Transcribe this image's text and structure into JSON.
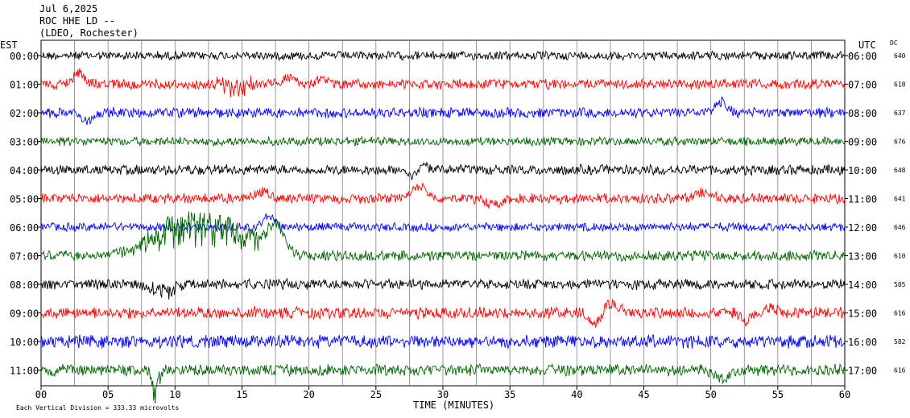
{
  "header": {
    "date": "Jul 6,2025",
    "station": "ROC HHE LD --",
    "location": "(LDEO, Rochester)"
  },
  "chart_data": {
    "type": "line",
    "title": "Jul 6,2025",
    "subtitle": "ROC HHE LD --",
    "xlabel": "TIME (MINUTES)",
    "ylabel_left": "EST",
    "ylabel_right": "UTC",
    "dc_label": "DC",
    "footnote": "Each Vertical Division =  333.33 microvolts",
    "xlim": [
      0,
      60
    ],
    "xticks": [
      0,
      5,
      10,
      15,
      20,
      25,
      30,
      35,
      40,
      45,
      50,
      55,
      60
    ],
    "xtick_labels": [
      "00",
      "05",
      "10",
      "15",
      "20",
      "25",
      "30",
      "35",
      "40",
      "45",
      "50",
      "55",
      "60"
    ],
    "grid": "vertical lines every 2.5 minutes",
    "colors": [
      "#000000",
      "#ff0000",
      "#0000ff",
      "#006400"
    ],
    "rows": [
      {
        "est": "00:00",
        "utc": "06:00",
        "dc": "640",
        "color": "#000000",
        "amp": 6,
        "events": []
      },
      {
        "est": "01:00",
        "utc": "07:00",
        "dc": "618",
        "color": "#ff0000",
        "amp": 7,
        "events": [
          [
            2.8,
            -14,
            0.6
          ],
          [
            14.5,
            0,
            1.5,
            12
          ],
          [
            18.5,
            -8,
            0.7
          ],
          [
            21,
            -6,
            0.6
          ]
        ]
      },
      {
        "est": "02:00",
        "utc": "08:00",
        "dc": "637",
        "color": "#0000ff",
        "amp": 7,
        "events": [
          [
            3.4,
            10,
            0.6
          ],
          [
            50.8,
            -14,
            0.6
          ]
        ]
      },
      {
        "est": "03:00",
        "utc": "09:00",
        "dc": "676",
        "color": "#006400",
        "amp": 6,
        "events": []
      },
      {
        "est": "04:00",
        "utc": "10:00",
        "dc": "648",
        "color": "#000000",
        "amp": 7,
        "events": [
          [
            27.8,
            10,
            0.5
          ],
          [
            28.4,
            -8,
            0.6
          ]
        ]
      },
      {
        "est": "05:00",
        "utc": "11:00",
        "dc": "641",
        "color": "#ff0000",
        "amp": 7,
        "events": [
          [
            16.5,
            -8,
            0.8
          ],
          [
            28.2,
            -14,
            0.8
          ],
          [
            33.8,
            8,
            0.9
          ],
          [
            49.5,
            -8,
            0.7
          ]
        ]
      },
      {
        "est": "06:00",
        "utc": "12:00",
        "dc": "646",
        "color": "#0000ff",
        "amp": 6,
        "events": [
          [
            17,
            -14,
            0.6
          ]
        ]
      },
      {
        "est": "07:00",
        "utc": "13:00",
        "dc": "610",
        "color": "#006400",
        "amp": 7,
        "events": [
          [
            10.5,
            -30,
            3.5,
            22
          ],
          [
            14.5,
            -22,
            2.5,
            18
          ],
          [
            17.5,
            -35,
            0.9
          ]
        ]
      },
      {
        "est": "08:00",
        "utc": "14:00",
        "dc": "505",
        "color": "#000000",
        "amp": 7,
        "events": [
          [
            9,
            8,
            1.2,
            10
          ]
        ]
      },
      {
        "est": "09:00",
        "utc": "15:00",
        "dc": "616",
        "color": "#ff0000",
        "amp": 8,
        "events": [
          [
            41.4,
            16,
            0.6
          ],
          [
            42.6,
            -12,
            0.9
          ],
          [
            52.6,
            10,
            0.5
          ],
          [
            54.5,
            -6,
            0.6
          ]
        ]
      },
      {
        "est": "10:00",
        "utc": "16:00",
        "dc": "582",
        "color": "#0000ff",
        "amp": 9,
        "events": []
      },
      {
        "est": "11:00",
        "utc": "17:00",
        "dc": "616",
        "color": "#006400",
        "amp": 8,
        "events": [
          [
            8.5,
            22,
            0.4,
            14
          ],
          [
            50.8,
            10,
            0.8
          ]
        ]
      }
    ]
  }
}
